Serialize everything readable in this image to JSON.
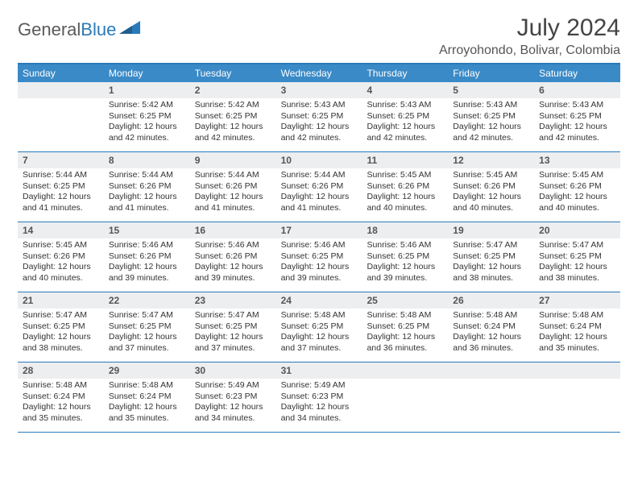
{
  "brand": {
    "word1": "General",
    "word2": "Blue"
  },
  "title": "July 2024",
  "location": "Arroyohondo, Bolivar, Colombia",
  "colors": {
    "header_bg": "#3a8ac7",
    "rule": "#2a7ab9",
    "daynum_bg": "#eceef0",
    "text": "#333333"
  },
  "weekdays": [
    "Sunday",
    "Monday",
    "Tuesday",
    "Wednesday",
    "Thursday",
    "Friday",
    "Saturday"
  ],
  "weeks": [
    [
      null,
      {
        "n": "1",
        "sr": "5:42 AM",
        "ss": "6:25 PM",
        "dl": "12 hours and 42 minutes."
      },
      {
        "n": "2",
        "sr": "5:42 AM",
        "ss": "6:25 PM",
        "dl": "12 hours and 42 minutes."
      },
      {
        "n": "3",
        "sr": "5:43 AM",
        "ss": "6:25 PM",
        "dl": "12 hours and 42 minutes."
      },
      {
        "n": "4",
        "sr": "5:43 AM",
        "ss": "6:25 PM",
        "dl": "12 hours and 42 minutes."
      },
      {
        "n": "5",
        "sr": "5:43 AM",
        "ss": "6:25 PM",
        "dl": "12 hours and 42 minutes."
      },
      {
        "n": "6",
        "sr": "5:43 AM",
        "ss": "6:25 PM",
        "dl": "12 hours and 42 minutes."
      }
    ],
    [
      {
        "n": "7",
        "sr": "5:44 AM",
        "ss": "6:25 PM",
        "dl": "12 hours and 41 minutes."
      },
      {
        "n": "8",
        "sr": "5:44 AM",
        "ss": "6:26 PM",
        "dl": "12 hours and 41 minutes."
      },
      {
        "n": "9",
        "sr": "5:44 AM",
        "ss": "6:26 PM",
        "dl": "12 hours and 41 minutes."
      },
      {
        "n": "10",
        "sr": "5:44 AM",
        "ss": "6:26 PM",
        "dl": "12 hours and 41 minutes."
      },
      {
        "n": "11",
        "sr": "5:45 AM",
        "ss": "6:26 PM",
        "dl": "12 hours and 40 minutes."
      },
      {
        "n": "12",
        "sr": "5:45 AM",
        "ss": "6:26 PM",
        "dl": "12 hours and 40 minutes."
      },
      {
        "n": "13",
        "sr": "5:45 AM",
        "ss": "6:26 PM",
        "dl": "12 hours and 40 minutes."
      }
    ],
    [
      {
        "n": "14",
        "sr": "5:45 AM",
        "ss": "6:26 PM",
        "dl": "12 hours and 40 minutes."
      },
      {
        "n": "15",
        "sr": "5:46 AM",
        "ss": "6:26 PM",
        "dl": "12 hours and 39 minutes."
      },
      {
        "n": "16",
        "sr": "5:46 AM",
        "ss": "6:26 PM",
        "dl": "12 hours and 39 minutes."
      },
      {
        "n": "17",
        "sr": "5:46 AM",
        "ss": "6:25 PM",
        "dl": "12 hours and 39 minutes."
      },
      {
        "n": "18",
        "sr": "5:46 AM",
        "ss": "6:25 PM",
        "dl": "12 hours and 39 minutes."
      },
      {
        "n": "19",
        "sr": "5:47 AM",
        "ss": "6:25 PM",
        "dl": "12 hours and 38 minutes."
      },
      {
        "n": "20",
        "sr": "5:47 AM",
        "ss": "6:25 PM",
        "dl": "12 hours and 38 minutes."
      }
    ],
    [
      {
        "n": "21",
        "sr": "5:47 AM",
        "ss": "6:25 PM",
        "dl": "12 hours and 38 minutes."
      },
      {
        "n": "22",
        "sr": "5:47 AM",
        "ss": "6:25 PM",
        "dl": "12 hours and 37 minutes."
      },
      {
        "n": "23",
        "sr": "5:47 AM",
        "ss": "6:25 PM",
        "dl": "12 hours and 37 minutes."
      },
      {
        "n": "24",
        "sr": "5:48 AM",
        "ss": "6:25 PM",
        "dl": "12 hours and 37 minutes."
      },
      {
        "n": "25",
        "sr": "5:48 AM",
        "ss": "6:25 PM",
        "dl": "12 hours and 36 minutes."
      },
      {
        "n": "26",
        "sr": "5:48 AM",
        "ss": "6:24 PM",
        "dl": "12 hours and 36 minutes."
      },
      {
        "n": "27",
        "sr": "5:48 AM",
        "ss": "6:24 PM",
        "dl": "12 hours and 35 minutes."
      }
    ],
    [
      {
        "n": "28",
        "sr": "5:48 AM",
        "ss": "6:24 PM",
        "dl": "12 hours and 35 minutes."
      },
      {
        "n": "29",
        "sr": "5:48 AM",
        "ss": "6:24 PM",
        "dl": "12 hours and 35 minutes."
      },
      {
        "n": "30",
        "sr": "5:49 AM",
        "ss": "6:23 PM",
        "dl": "12 hours and 34 minutes."
      },
      {
        "n": "31",
        "sr": "5:49 AM",
        "ss": "6:23 PM",
        "dl": "12 hours and 34 minutes."
      },
      null,
      null,
      null
    ]
  ],
  "labels": {
    "sunrise": "Sunrise: ",
    "sunset": "Sunset: ",
    "daylight": "Daylight: "
  }
}
